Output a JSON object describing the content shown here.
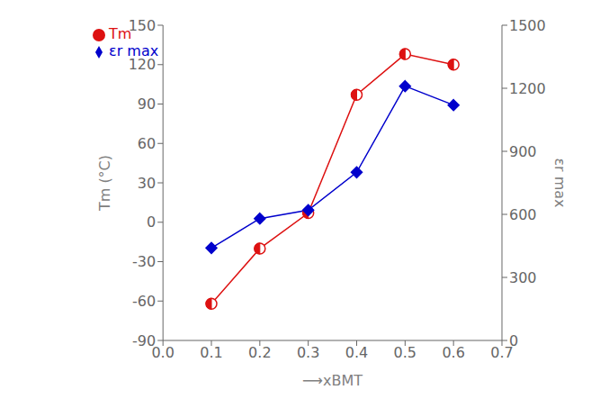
{
  "chart_data": {
    "type": "line",
    "x": [
      0.1,
      0.2,
      0.3,
      0.4,
      0.5,
      0.6
    ],
    "series": [
      {
        "name": "Tm",
        "color": "#dd1111",
        "marker": "half_circle",
        "values": [
          -62,
          -20,
          7,
          97,
          128,
          120
        ]
      },
      {
        "name": "εr max",
        "color": "#0000cc",
        "marker": "diamond",
        "axis": "y2",
        "values": [
          440,
          580,
          620,
          800,
          1210,
          1120
        ]
      }
    ],
    "x_label": "⟶xBMT",
    "y_label": "Tm (°C)",
    "y2_label": "εr max",
    "xlim": [
      0.0,
      0.7
    ],
    "xticks": [
      {
        "value": 0.0,
        "label": "0.0"
      },
      0.1,
      0.2,
      0.3,
      0.4,
      0.5,
      0.6,
      0.7
    ],
    "ylim": [
      -90,
      150
    ],
    "yticks": [
      -90,
      -60,
      -30,
      0,
      30,
      60,
      90,
      120,
      150
    ],
    "y2lim": [
      0,
      1500
    ],
    "y2ticks": [
      0,
      300,
      600,
      900,
      1200,
      1500
    ],
    "legend": "upper left",
    "grid": false
  }
}
